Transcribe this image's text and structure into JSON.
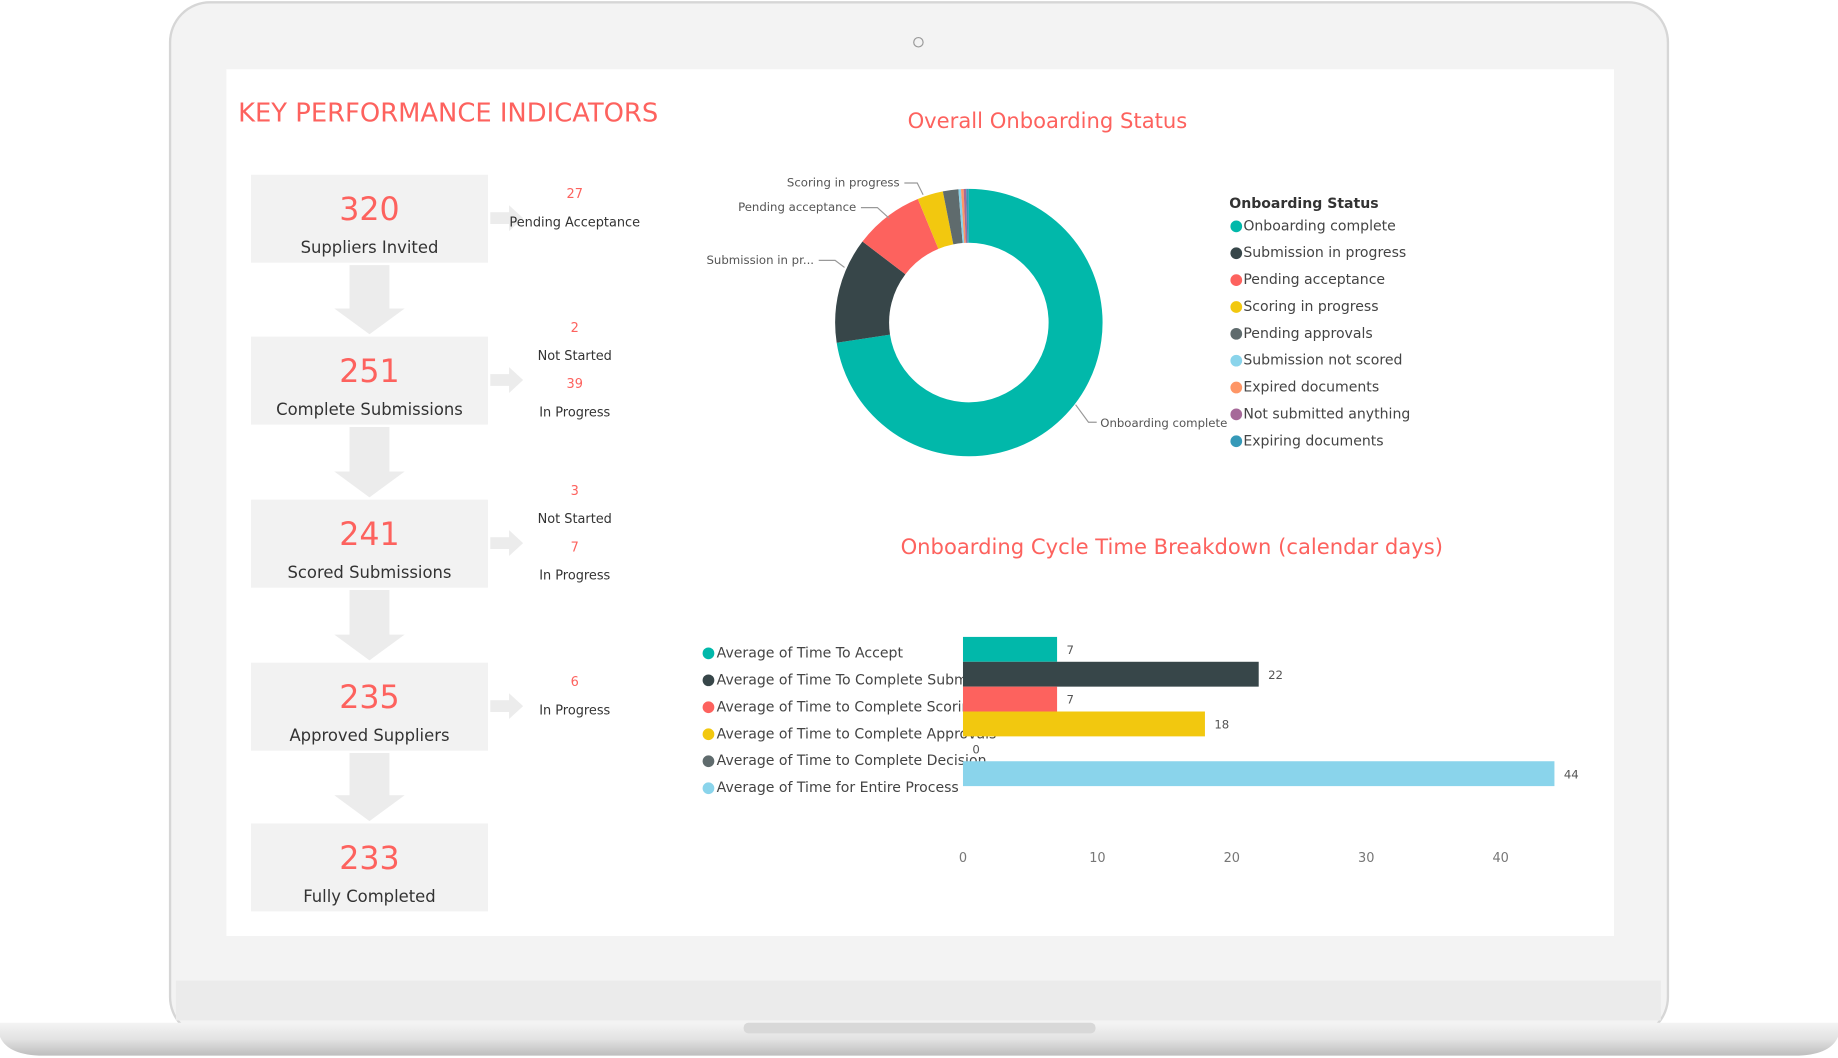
{
  "kpi": {
    "title": "KEY PERFORMANCE INDICATORS",
    "stages": [
      {
        "value": 320,
        "label": "Suppliers Invited",
        "details": [
          {
            "value": 27,
            "label": "Pending Acceptance"
          }
        ]
      },
      {
        "value": 251,
        "label": "Complete Submissions",
        "details": [
          {
            "value": 2,
            "label": "Not Started"
          },
          {
            "value": 39,
            "label": "In Progress"
          }
        ]
      },
      {
        "value": 241,
        "label": "Scored Submissions",
        "details": [
          {
            "value": 3,
            "label": "Not Started"
          },
          {
            "value": 7,
            "label": "In Progress"
          }
        ]
      },
      {
        "value": 235,
        "label": "Approved Suppliers",
        "details": [
          {
            "value": 6,
            "label": "In Progress"
          }
        ]
      },
      {
        "value": 233,
        "label": "Fully Completed",
        "details": []
      }
    ]
  },
  "chart_data": [
    {
      "type": "donut",
      "title": "Overall Onboarding Status",
      "legend_title": "Onboarding Status",
      "legend": "right",
      "categories": [
        "Onboarding complete",
        "Submission in progress",
        "Pending acceptance",
        "Scoring in progress",
        "Pending approvals",
        "Submission not scored",
        "Expired documents",
        "Not submitted anything",
        "Expiring documents"
      ],
      "colors": [
        "#01B8AA",
        "#374649",
        "#FD625E",
        "#F2C80F",
        "#5F6B6D",
        "#8AD4EB",
        "#FE9666",
        "#A66999",
        "#3599B8"
      ],
      "values": [
        233,
        41,
        27,
        10,
        6,
        1,
        1,
        1,
        1
      ],
      "labels": [
        "Onboarding complete",
        "Submission in pr...",
        "Pending acceptance",
        "Scoring in progress",
        null,
        null,
        null,
        null,
        null
      ]
    },
    {
      "type": "bar",
      "orientation": "horizontal",
      "title": "Onboarding Cycle Time Breakdown (calendar days)",
      "legend": "left",
      "series": [
        {
          "name": "Average of Time To Accept",
          "color": "#01B8AA",
          "values": [
            7
          ]
        },
        {
          "name": "Average of Time To Complete Submission",
          "color": "#374649",
          "values": [
            22
          ]
        },
        {
          "name": "Average of Time to Complete Scoring",
          "color": "#FD625E",
          "values": [
            7
          ]
        },
        {
          "name": "Average of Time to Complete Approvals",
          "color": "#F2C80F",
          "values": [
            18
          ]
        },
        {
          "name": "Average of Time to Complete Decision",
          "color": "#5F6B6D",
          "values": [
            0
          ]
        },
        {
          "name": "Average of Time for Entire Process",
          "color": "#8AD4EB",
          "values": [
            44
          ]
        }
      ],
      "xlim": [
        0,
        45
      ],
      "xticks": [
        0,
        10,
        20,
        30,
        40
      ]
    }
  ]
}
